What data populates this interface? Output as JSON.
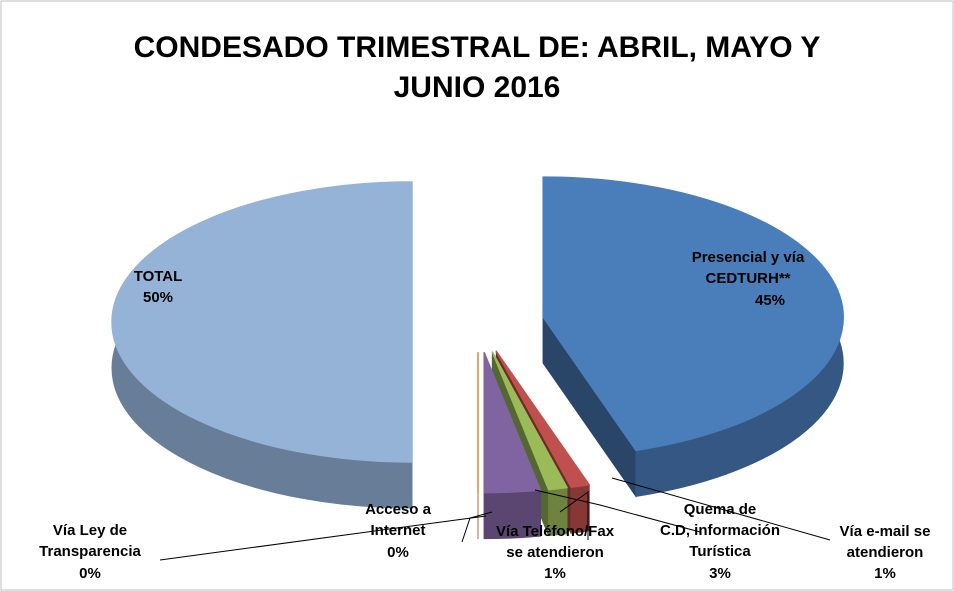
{
  "chart_data": {
    "type": "pie3d",
    "title": "CONDESADO TRIMESTRAL DE: ABRIL, MAYO Y\nJUNIO 2016",
    "categories": [
      "Presencial y vía\nCEDTURH**",
      "Vía  e-mail se\natendieron",
      "Vía  Teléfono/Fax\nse atendieron",
      "Quema de\nC.D, información\nTurística",
      "Acceso a\nInternet",
      "Vía  Ley de\nTransparencia",
      "TOTAL"
    ],
    "values": [
      45,
      1,
      1,
      3,
      0,
      0,
      50
    ],
    "value_labels": [
      "45%",
      "1%",
      "1%",
      "3%",
      "0%",
      "0%",
      "50%"
    ],
    "colors": [
      "#4a7ebb",
      "#c0504d",
      "#9bbb59",
      "#8064a2",
      "#4bacc6",
      "#f79646",
      "#95b3d7"
    ]
  }
}
